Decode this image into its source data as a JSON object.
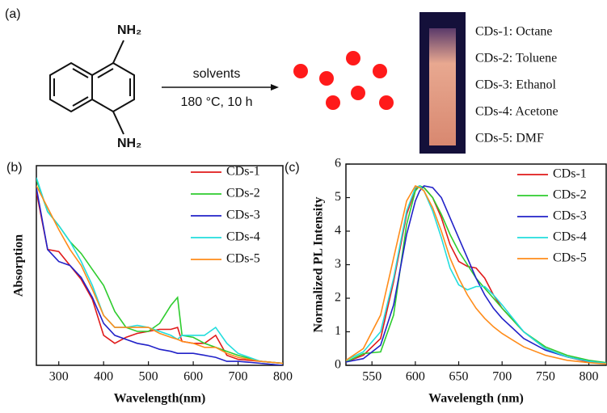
{
  "scheme": {
    "panel_label": "(a)",
    "amine_top": "NH₂",
    "amine_bottom": "NH₂",
    "arrow_top": "solvents",
    "arrow_bottom": "180 °C, 10 h",
    "solvents": [
      "CDs-1: Octane",
      "CDs-2: Toluene",
      "CDs-3: Ethanol",
      "CDs-4: Acetone",
      "CDs-5: DMF"
    ]
  },
  "chart_data": [
    {
      "type": "line",
      "panel_label": "(b)",
      "x_label": "Wavelength(nm)",
      "y_label": "Absorption",
      "x": [
        250,
        275,
        300,
        325,
        350,
        375,
        400,
        425,
        450,
        475,
        500,
        525,
        550,
        565,
        575,
        600,
        625,
        650,
        675,
        700,
        750,
        800
      ],
      "xlim": [
        250,
        800
      ],
      "xticks": [
        300,
        400,
        500,
        600,
        700,
        800
      ],
      "ylim": [
        0,
        1
      ],
      "series": [
        {
          "name": "CDs-1",
          "color": "#e01a1a",
          "values": [
            0.87,
            0.58,
            0.57,
            0.5,
            0.43,
            0.33,
            0.15,
            0.11,
            0.14,
            0.16,
            0.17,
            0.18,
            0.18,
            0.19,
            0.12,
            0.11,
            0.11,
            0.15,
            0.05,
            0.03,
            0.02,
            0.01
          ]
        },
        {
          "name": "CDs-2",
          "color": "#2ecc2e",
          "values": [
            0.93,
            0.77,
            0.7,
            0.62,
            0.56,
            0.48,
            0.4,
            0.27,
            0.19,
            0.17,
            0.17,
            0.21,
            0.3,
            0.34,
            0.15,
            0.14,
            0.11,
            0.09,
            0.07,
            0.05,
            0.02,
            0.01
          ]
        },
        {
          "name": "CDs-3",
          "color": "#2222c8",
          "values": [
            0.89,
            0.58,
            0.52,
            0.5,
            0.44,
            0.34,
            0.21,
            0.15,
            0.13,
            0.11,
            0.1,
            0.08,
            0.07,
            0.06,
            0.06,
            0.06,
            0.05,
            0.04,
            0.02,
            0.02,
            0.01,
            0.0
          ]
        },
        {
          "name": "CDs-4",
          "color": "#22dddd",
          "values": [
            0.94,
            0.77,
            0.7,
            0.62,
            0.52,
            0.4,
            0.25,
            0.19,
            0.19,
            0.2,
            0.19,
            0.17,
            0.15,
            0.13,
            0.15,
            0.15,
            0.15,
            0.19,
            0.11,
            0.06,
            0.02,
            0.01
          ]
        },
        {
          "name": "CDs-5",
          "color": "#ff8c1a",
          "values": [
            0.9,
            0.79,
            0.68,
            0.58,
            0.5,
            0.38,
            0.25,
            0.19,
            0.19,
            0.19,
            0.19,
            0.16,
            0.14,
            0.13,
            0.12,
            0.11,
            0.09,
            0.09,
            0.06,
            0.04,
            0.02,
            0.01
          ]
        }
      ]
    },
    {
      "type": "line",
      "panel_label": "(c)",
      "x_label": "Wavelength (nm)",
      "y_label": "Normalized PL Intensity",
      "x": [
        520,
        540,
        560,
        575,
        590,
        600,
        605,
        610,
        620,
        630,
        640,
        650,
        660,
        670,
        680,
        690,
        700,
        725,
        750,
        775,
        800,
        820
      ],
      "xlim": [
        520,
        820
      ],
      "xticks": [
        550,
        600,
        650,
        700,
        750,
        800
      ],
      "ylim": [
        0,
        6
      ],
      "yticks": [
        0,
        1,
        2,
        3,
        4,
        5,
        6
      ],
      "series": [
        {
          "name": "CDs-1",
          "color": "#e01a1a",
          "values": [
            0.1,
            0.3,
            0.8,
            2.5,
            4.5,
            5.25,
            5.35,
            5.3,
            5.0,
            4.4,
            3.6,
            3.1,
            2.95,
            2.9,
            2.6,
            2.1,
            1.7,
            1.0,
            0.5,
            0.25,
            0.1,
            0.05
          ]
        },
        {
          "name": "CDs-2",
          "color": "#2ecc2e",
          "values": [
            0.1,
            0.35,
            0.4,
            1.5,
            4.2,
            5.2,
            5.35,
            5.3,
            5.0,
            4.5,
            3.9,
            3.4,
            3.0,
            2.6,
            2.3,
            2.0,
            1.7,
            1.0,
            0.55,
            0.3,
            0.15,
            0.08
          ]
        },
        {
          "name": "CDs-3",
          "color": "#2222c8",
          "values": [
            0.1,
            0.2,
            0.6,
            1.8,
            3.9,
            4.9,
            5.2,
            5.35,
            5.3,
            5.0,
            4.4,
            3.8,
            3.2,
            2.6,
            2.1,
            1.7,
            1.4,
            0.8,
            0.45,
            0.25,
            0.12,
            0.06
          ]
        },
        {
          "name": "CDs-4",
          "color": "#22dddd",
          "values": [
            0.15,
            0.4,
            1.0,
            2.6,
            4.6,
            5.3,
            5.35,
            5.2,
            4.6,
            3.8,
            2.9,
            2.4,
            2.25,
            2.35,
            2.35,
            2.1,
            1.8,
            1.0,
            0.5,
            0.25,
            0.12,
            0.06
          ]
        },
        {
          "name": "CDs-5",
          "color": "#ff8c1a",
          "values": [
            0.15,
            0.5,
            1.5,
            3.2,
            4.9,
            5.35,
            5.3,
            5.2,
            4.7,
            4.0,
            3.2,
            2.6,
            2.1,
            1.7,
            1.4,
            1.15,
            0.95,
            0.55,
            0.3,
            0.15,
            0.08,
            0.04
          ]
        }
      ]
    }
  ]
}
